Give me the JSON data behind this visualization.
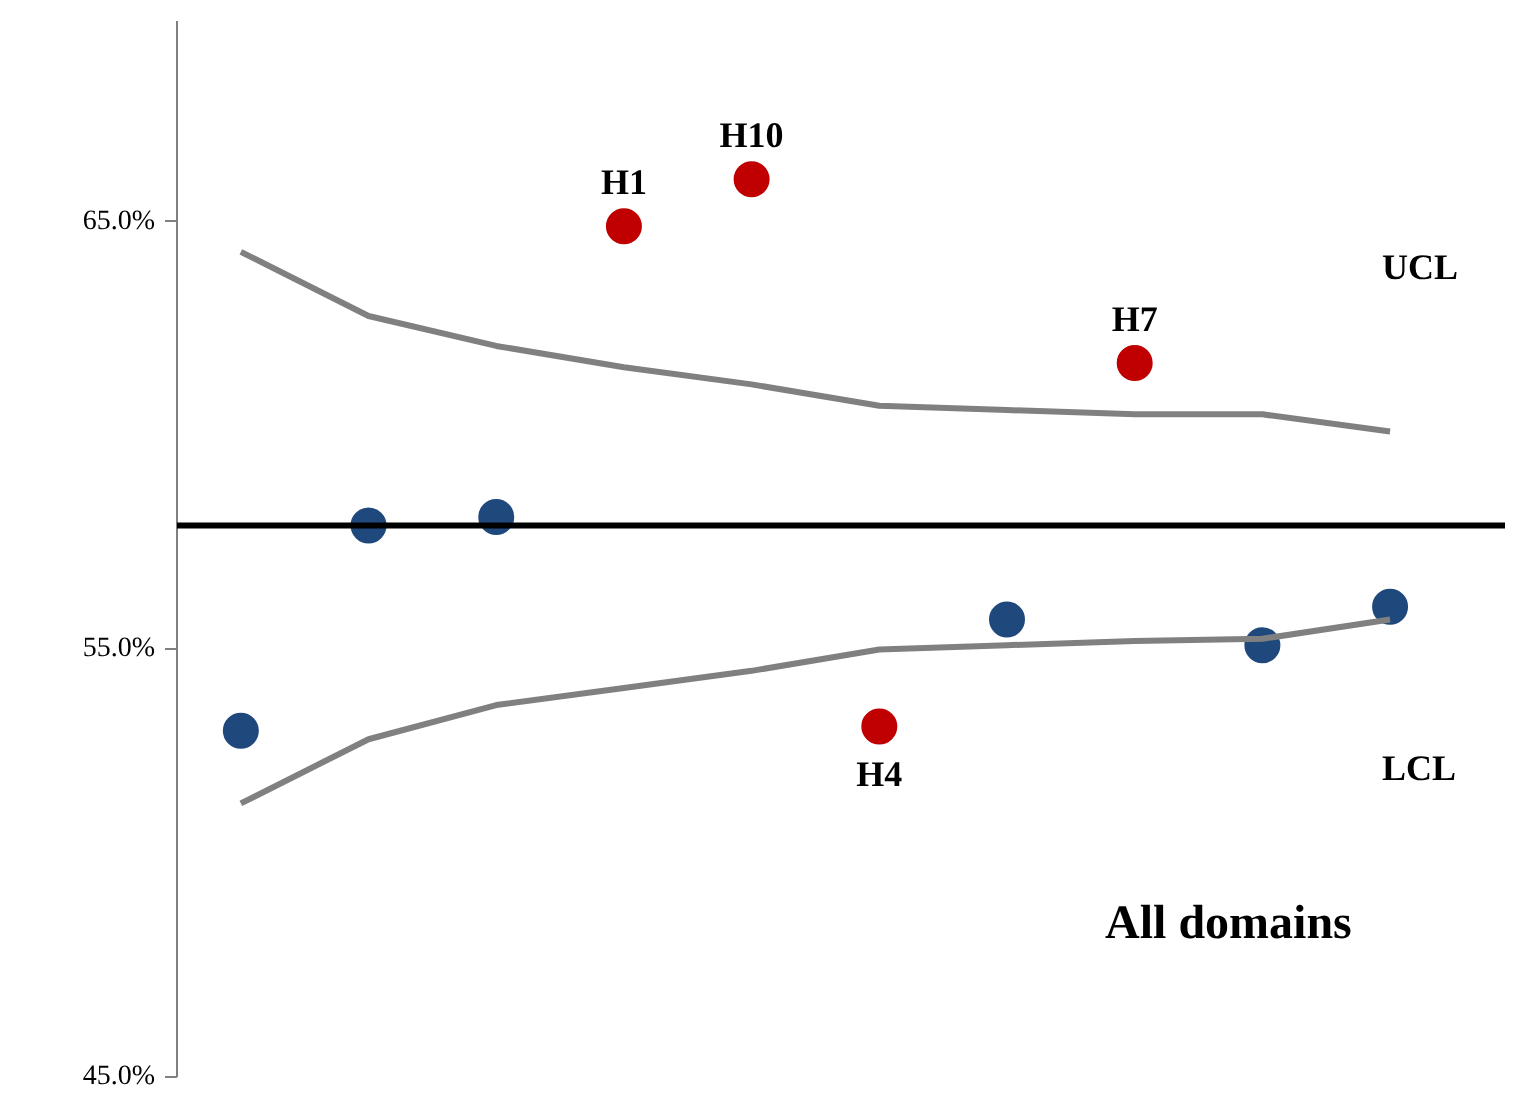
{
  "chart_data": {
    "type": "scatter",
    "annotations": [
      "All domains"
    ],
    "categories": [
      null,
      null,
      null,
      null,
      null,
      null,
      null,
      null,
      null,
      null
    ],
    "series": [
      {
        "color": "#1f497d",
        "values": [
          53.1,
          57.9,
          58.1,
          null,
          null,
          null,
          55.7,
          null,
          55.1,
          56.0
        ]
      },
      {
        "color": "#c00000",
        "values": [
          null,
          null,
          null,
          64.9,
          66.0,
          53.2,
          null,
          61.7,
          null,
          null
        ],
        "value_labels": [
          null,
          null,
          null,
          "H1",
          "H10",
          "H4",
          null,
          "H7",
          null,
          null
        ]
      },
      {
        "type": "line",
        "name": "UCL",
        "color": "#808080",
        "marker": "none",
        "values": [
          64.3,
          62.8,
          62.1,
          61.6,
          61.2,
          60.7,
          60.6,
          60.5,
          60.5,
          60.1
        ]
      },
      {
        "type": "line",
        "name": "LCL",
        "color": "#808080",
        "marker": "none",
        "values": [
          51.4,
          52.9,
          53.7,
          54.1,
          54.5,
          55.0,
          55.1,
          55.2,
          55.25,
          55.7
        ]
      }
    ],
    "ref_lines": [
      {
        "axis": "y",
        "value": 57.9,
        "color": "#000000"
      }
    ],
    "ylim": [
      45,
      69.7
    ],
    "yticks": [
      {
        "value": 45,
        "label": "45.0%"
      },
      {
        "value": 55,
        "label": "55.0%"
      },
      {
        "value": 65,
        "label": "65.0%"
      }
    ],
    "tick_labels": "y",
    "grid": false,
    "marker": "circle",
    "line_style": "solid"
  }
}
